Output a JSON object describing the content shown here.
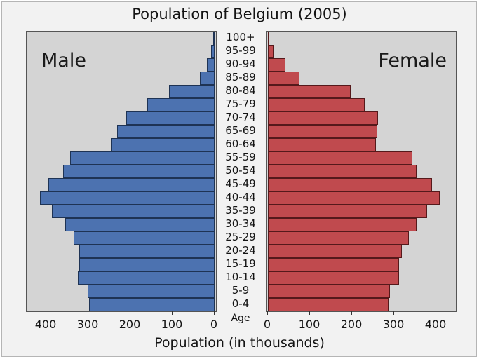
{
  "title": "Population of Belgium (2005)",
  "xlabel": "Population (in thousands)",
  "age_axis_label": "Age",
  "male_label": "Male",
  "female_label": "Female",
  "colors": {
    "male_bar": "#4c72b0",
    "male_bar_edge": "#1e3354",
    "female_bar": "#c04a4e",
    "female_bar_edge": "#55191b",
    "plot_background": "#d4d4d4",
    "figure_background": "#f2f2f2",
    "text": "#141414"
  },
  "x_axis": {
    "male_ticks": [
      400,
      300,
      200,
      100,
      0
    ],
    "female_ticks": [
      0,
      100,
      200,
      300,
      400
    ],
    "pixels_per_thousand": 0.6
  },
  "chart_data": {
    "type": "bar",
    "orientation": "horizontal",
    "title": "Population of Belgium (2005)",
    "xlabel": "Population (in thousands)",
    "ylabel": "Age",
    "xlim": [
      0,
      447
    ],
    "legend_position": "in-plot text annotations (Male left panel, Female right panel)",
    "grid": false,
    "order": "top-to-bottom, oldest to youngest",
    "categories": [
      "100+",
      "95-99",
      "90-94",
      "85-89",
      "80-84",
      "75-79",
      "70-74",
      "65-69",
      "60-64",
      "55-59",
      "50-54",
      "45-49",
      "40-44",
      "35-39",
      "30-34",
      "25-29",
      "20-24",
      "15-19",
      "10-14",
      "5-9",
      "0-4"
    ],
    "series": [
      {
        "name": "Male",
        "values": [
          1,
          9,
          18,
          35,
          108,
          160,
          210,
          232,
          247,
          343,
          360,
          395,
          415,
          387,
          355,
          335,
          322,
          322,
          325,
          301,
          298
        ]
      },
      {
        "name": "Female",
        "values": [
          2,
          13,
          42,
          75,
          196,
          230,
          262,
          260,
          256,
          344,
          354,
          390,
          408,
          378,
          354,
          335,
          319,
          311,
          312,
          290,
          286
        ]
      }
    ],
    "units": "thousands of people"
  }
}
